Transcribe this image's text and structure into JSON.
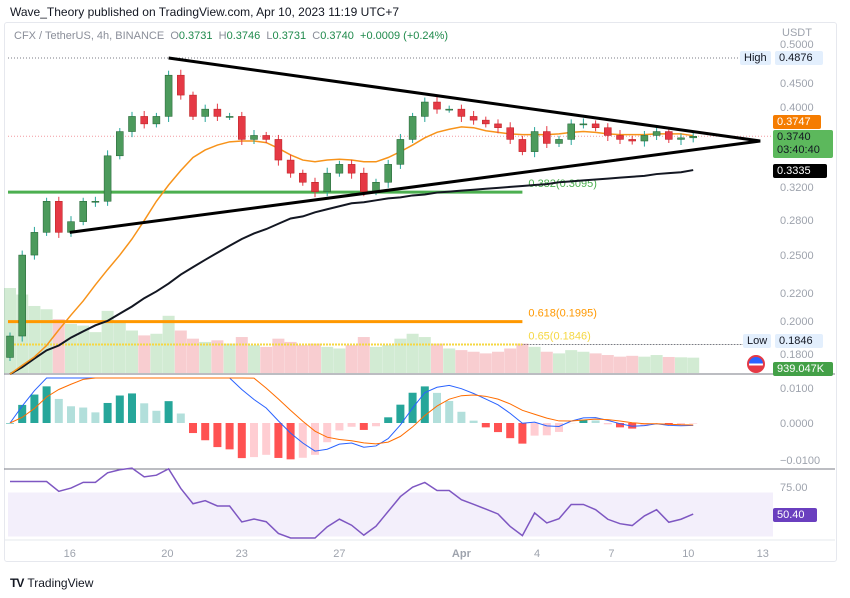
{
  "header": {
    "published": "Wave_Theory published on TradingView.com, Apr 10, 2023 11:19 UTC+7",
    "symbol": "CFX / TetherUS, 4h, BINANCE",
    "o_label": "O",
    "o": "0.3731",
    "h_label": "H",
    "h": "0.3746",
    "l_label": "L",
    "l": "0.3731",
    "c_label": "C",
    "c": "0.3740",
    "change": "+0.0009 (+0.24%)"
  },
  "footer": {
    "brand": "TradingView",
    "logo": "17"
  },
  "colors": {
    "up": "#26a69a",
    "up_body": "#4c9a5c",
    "down": "#e53945",
    "ma_short": "#f7931a",
    "ma_long": "#131722",
    "fib_382": "#4caf50",
    "fib_618": "#ff9800",
    "fib_65": "#f5d742",
    "rsi": "#7e57c2",
    "macd": "#2962ff",
    "signal": "#ff6d00"
  },
  "chart_data": {
    "type": "candlestick",
    "scale": "log",
    "currency": "USDT",
    "ylim": [
      0.165,
      0.52
    ],
    "x_ticks": [
      {
        "label": "16",
        "index": 4.9
      },
      {
        "label": "20",
        "index": 12.9
      },
      {
        "label": "23",
        "index": 19.0
      },
      {
        "label": "27",
        "index": 27.0
      },
      {
        "label": "Apr",
        "index": 37.0
      },
      {
        "label": "4",
        "index": 43.2
      },
      {
        "label": "7",
        "index": 49.3
      },
      {
        "label": "10",
        "index": 55.6
      },
      {
        "label": "13",
        "index": 61.7
      }
    ],
    "y_ticks": [
      "0.5000",
      "0.4500",
      "0.4000",
      "0.3200",
      "0.2800",
      "0.2500",
      "0.2200",
      "0.2000",
      "0.1800"
    ],
    "closes": [
      0.19,
      0.25,
      0.27,
      0.3,
      0.27,
      0.28,
      0.3,
      0.3,
      0.35,
      0.38,
      0.4,
      0.39,
      0.4,
      0.46,
      0.43,
      0.4,
      0.41,
      0.4,
      0.4,
      0.37,
      0.375,
      0.37,
      0.345,
      0.33,
      0.32,
      0.31,
      0.33,
      0.34,
      0.33,
      0.31,
      0.32,
      0.34,
      0.37,
      0.4,
      0.42,
      0.41,
      0.41,
      0.4,
      0.395,
      0.39,
      0.385,
      0.37,
      0.355,
      0.38,
      0.365,
      0.37,
      0.39,
      0.39,
      0.385,
      0.375,
      0.37,
      0.368,
      0.375,
      0.38,
      0.37,
      0.372,
      0.374
    ],
    "volume_k": [
      5200,
      4800,
      4100,
      3900,
      3300,
      3000,
      2900,
      2500,
      3800,
      3200,
      2600,
      2300,
      2400,
      3500,
      2600,
      2100,
      1900,
      2000,
      1800,
      2200,
      1700,
      1600,
      2100,
      1900,
      1700,
      1800,
      1600,
      1500,
      1700,
      2200,
      1600,
      1700,
      2100,
      2400,
      2200,
      1800,
      1500,
      1400,
      1300,
      1200,
      1300,
      1500,
      1800,
      1600,
      1300,
      1200,
      1400,
      1300,
      1200,
      1100,
      1000,
      1050,
      1000,
      1100,
      980,
      960,
      939
    ],
    "ma_short": [
      0.167,
      0.172,
      0.177,
      0.184,
      0.194,
      0.204,
      0.214,
      0.226,
      0.238,
      0.25,
      0.264,
      0.281,
      0.3,
      0.317,
      0.333,
      0.348,
      0.357,
      0.363,
      0.367,
      0.368,
      0.368,
      0.366,
      0.359,
      0.351,
      0.345,
      0.343,
      0.345,
      0.346,
      0.345,
      0.343,
      0.343,
      0.348,
      0.355,
      0.363,
      0.372,
      0.379,
      0.383,
      0.386,
      0.385,
      0.381,
      0.379,
      0.377,
      0.376,
      0.376,
      0.376,
      0.377,
      0.379,
      0.38,
      0.379,
      0.377,
      0.376,
      0.376,
      0.376,
      0.377,
      0.377,
      0.377,
      0.3747
    ],
    "ma_long": [
      0.167,
      0.171,
      0.176,
      0.181,
      0.184,
      0.189,
      0.193,
      0.197,
      0.2,
      0.205,
      0.21,
      0.216,
      0.221,
      0.227,
      0.234,
      0.24,
      0.246,
      0.252,
      0.258,
      0.264,
      0.269,
      0.273,
      0.278,
      0.283,
      0.285,
      0.289,
      0.292,
      0.295,
      0.298,
      0.299,
      0.301,
      0.303,
      0.304,
      0.306,
      0.307,
      0.309,
      0.31,
      0.311,
      0.312,
      0.313,
      0.314,
      0.315,
      0.316,
      0.317,
      0.318,
      0.32,
      0.321,
      0.322,
      0.323,
      0.324,
      0.325,
      0.326,
      0.327,
      0.329,
      0.33,
      0.331,
      0.3335
    ],
    "trendlines": [
      {
        "name": "upper",
        "from": [
          13,
          0.4876
        ],
        "to": [
          61.5,
          0.368
        ]
      },
      {
        "name": "lower",
        "from": [
          4.9,
          0.27
        ],
        "to": [
          61.5,
          0.368
        ]
      }
    ],
    "fib_levels": [
      {
        "label": "0.382(0.3095)",
        "price": 0.3095,
        "color": "#4caf50",
        "end_index": 42
      },
      {
        "label": "0.618(0.1995)",
        "price": 0.1995,
        "color": "#ff9800",
        "end_index": 42
      },
      {
        "label": "0.65(0.1846)",
        "price": 0.1846,
        "color": "#f5d742",
        "end_index": 42
      }
    ],
    "high": {
      "label": "High",
      "value": "0.4876",
      "price": 0.4876
    },
    "low": {
      "label": "Low",
      "value": "0.1846",
      "price": 0.1846
    },
    "price_tags": {
      "ma_short": "0.3747",
      "last": "0.3740",
      "countdown": "03:40:40",
      "ma_long": "0.3335",
      "volume": "939.047K"
    },
    "macd": {
      "y_ticks": [
        "0.0100",
        "0.0000",
        "−0.0100"
      ]
    },
    "rsi": {
      "y_ticks": [
        "75.00"
      ],
      "last": "50.40",
      "band": [
        30,
        70
      ]
    }
  }
}
